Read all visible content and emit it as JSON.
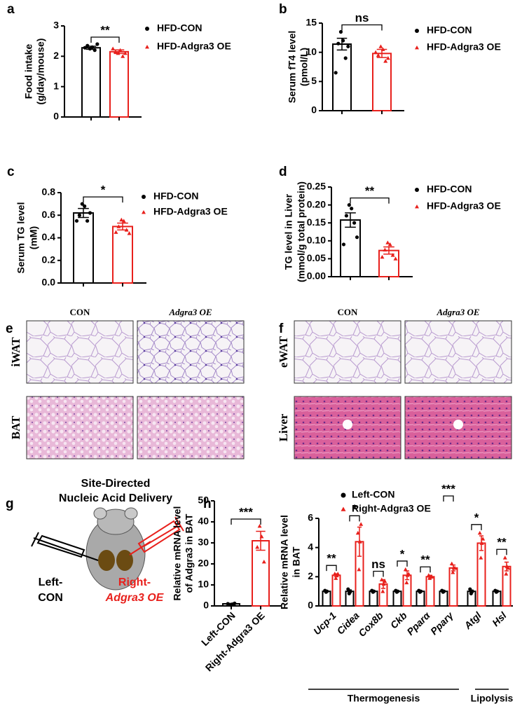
{
  "panel_labels": [
    "a",
    "b",
    "c",
    "d",
    "e",
    "f",
    "g",
    "h"
  ],
  "chart_data": [
    {
      "type": "bar",
      "ylabel": [
        "Food intake",
        "(g/day/mouse)"
      ],
      "categories": [
        "HFD-CON",
        "HFD-Adgra3 OE"
      ],
      "colors": [
        "#000000",
        "#e8201c"
      ],
      "values": [
        2.28,
        2.15
      ],
      "errors": [
        0.05,
        0.06
      ],
      "points": [
        [
          2.25,
          2.3,
          2.35,
          2.2,
          2.28,
          2.4
        ],
        [
          2.1,
          2.2,
          2.15,
          2.0,
          2.25,
          2.1
        ]
      ],
      "significance": "**",
      "ylim": [
        0,
        3
      ],
      "yticks": [
        0,
        1,
        2,
        3
      ],
      "legend": true
    },
    {
      "type": "bar",
      "ylabel": [
        "Serum fT4 level",
        "(pmol/L)"
      ],
      "categories": [
        "HFD-CON",
        "HFD-Adgra3 OE"
      ],
      "colors": [
        "#000000",
        "#e8201c"
      ],
      "values": [
        11.4,
        9.8
      ],
      "errors": [
        1.0,
        0.7
      ],
      "points": [
        [
          13.5,
          12,
          11.5,
          9,
          6.5,
          11
        ],
        [
          11,
          10.5,
          9.5,
          8.5,
          10,
          9
        ]
      ],
      "significance": "ns",
      "ylim": [
        0,
        15
      ],
      "yticks": [
        0,
        5,
        10,
        15
      ],
      "legend": true
    },
    {
      "type": "bar",
      "ylabel": [
        "Serum TG level",
        "(mM)"
      ],
      "categories": [
        "HFD-CON",
        "HFD-Adgra3 OE"
      ],
      "colors": [
        "#000000",
        "#e8201c"
      ],
      "values": [
        0.62,
        0.5
      ],
      "errors": [
        0.04,
        0.03
      ],
      "points": [
        [
          0.7,
          0.68,
          0.6,
          0.55,
          0.55,
          0.62
        ],
        [
          0.56,
          0.55,
          0.5,
          0.47,
          0.45,
          0.44
        ]
      ],
      "significance": "*",
      "ylim": [
        0,
        0.8
      ],
      "yticks": [
        {
          "value": 0,
          "label": "0.0"
        },
        0.2,
        0.4,
        0.6,
        0.8
      ],
      "legend": true
    },
    {
      "type": "bar",
      "ylabel": [
        "TG level in Liver",
        "(mmol/g total protein)"
      ],
      "categories": [
        "HFD-CON",
        "HFD-Adgra3 OE"
      ],
      "colors": [
        "#000000",
        "#e8201c"
      ],
      "values": [
        0.158,
        0.073
      ],
      "errors": [
        0.02,
        0.01
      ],
      "points": [
        [
          0.2,
          0.19,
          0.17,
          0.15,
          0.09,
          0.11
        ],
        [
          0.095,
          0.09,
          0.075,
          0.06,
          0.055,
          0.05
        ]
      ],
      "significance": "**",
      "ylim": [
        0,
        0.25
      ],
      "yticks": [
        {
          "value": 0,
          "label": "0.00"
        },
        0.05,
        {
          "value": 0.1,
          "label": "0.10"
        },
        0.15,
        {
          "value": 0.2,
          "label": "0.20"
        },
        0.25
      ],
      "legend": true
    },
    {
      "type": "bar",
      "ylabel": [
        "Relative mRNA level",
        "of Adgra3 in BAT"
      ],
      "categories": [
        "Left-CON",
        "Right-Adgra3 OE"
      ],
      "colors": [
        "#000000",
        "#e8201c"
      ],
      "values": [
        1.0,
        31
      ],
      "errors": [
        0.2,
        4.5
      ],
      "points": [
        [
          0.5,
          0.8,
          1.0,
          1.2
        ],
        [
          38,
          33,
          28,
          21
        ]
      ],
      "significance": "***",
      "ylim": [
        0,
        50
      ],
      "yticks": [
        0,
        10,
        20,
        30,
        40,
        50
      ],
      "legend": false
    },
    {
      "type": "grouped_bar",
      "ylabel": [
        "Relative mRNA level",
        "in BAT"
      ],
      "categories": [
        "Ucp-1",
        "Cidea",
        "Cox8b",
        "Ckb",
        "Pparα",
        "Pparγ",
        "Atgl",
        "Hsl"
      ],
      "series": [
        {
          "name": "Left-CON",
          "color": "#000000",
          "values": [
            1.0,
            1.0,
            1.0,
            1.0,
            1.0,
            1.0,
            1.0,
            1.0
          ],
          "errors": [
            0.03,
            0.1,
            0.03,
            0.03,
            0.03,
            0.03,
            0.08,
            0.03
          ],
          "points": [
            [
              0.95,
              1.0,
              1.05
            ],
            [
              0.85,
              1.0,
              1.15
            ],
            [
              0.95,
              1.0,
              1.05
            ],
            [
              0.95,
              1.0,
              1.05
            ],
            [
              0.95,
              1.0,
              1.05
            ],
            [
              0.95,
              1.0,
              1.05
            ],
            [
              0.85,
              1.0,
              1.15
            ],
            [
              0.95,
              1.0,
              1.05
            ]
          ]
        },
        {
          "name": "Right-Adgra3 OE",
          "color": "#e8201c",
          "values": [
            2.1,
            4.4,
            1.5,
            2.1,
            2.0,
            2.6,
            4.3,
            2.7
          ],
          "errors": [
            0.1,
            1.0,
            0.3,
            0.3,
            0.1,
            0.2,
            0.5,
            0.3
          ],
          "points": [
            [
              1.9,
              2.1,
              2.2,
              2.2
            ],
            [
              2.5,
              4.4,
              5.0,
              5.6
            ],
            [
              1.0,
              1.5,
              1.8,
              1.7
            ],
            [
              1.6,
              2.1,
              2.5,
              2.2
            ],
            [
              1.9,
              2.0,
              2.1,
              2.0
            ],
            [
              2.3,
              2.6,
              2.9,
              2.6
            ],
            [
              3.3,
              4.3,
              5.0,
              4.6
            ],
            [
              2.2,
              2.7,
              3.3,
              2.6
            ]
          ]
        }
      ],
      "significance": [
        "**",
        "*",
        "ns",
        "*",
        "**",
        "***",
        "*",
        "**"
      ],
      "group_labels": [
        "Thermogenesis",
        "Lipolysis"
      ],
      "ylim": [
        0,
        6
      ],
      "yticks": [
        0,
        2,
        4,
        6
      ],
      "legend": true
    }
  ],
  "histology": {
    "e": {
      "columns": [
        "CON",
        "Adgra3 OE"
      ],
      "rows": [
        "iWAT",
        "BAT"
      ]
    },
    "f": {
      "columns": [
        "CON",
        "Adgra3 OE"
      ],
      "rows": [
        "eWAT",
        "Liver"
      ]
    }
  },
  "diagram": {
    "title": [
      "Site-Directed",
      "Nucleic Acid Delivery"
    ],
    "left": [
      "Left-",
      "CON"
    ],
    "right": [
      "Right-",
      "Adgra3 OE"
    ]
  }
}
